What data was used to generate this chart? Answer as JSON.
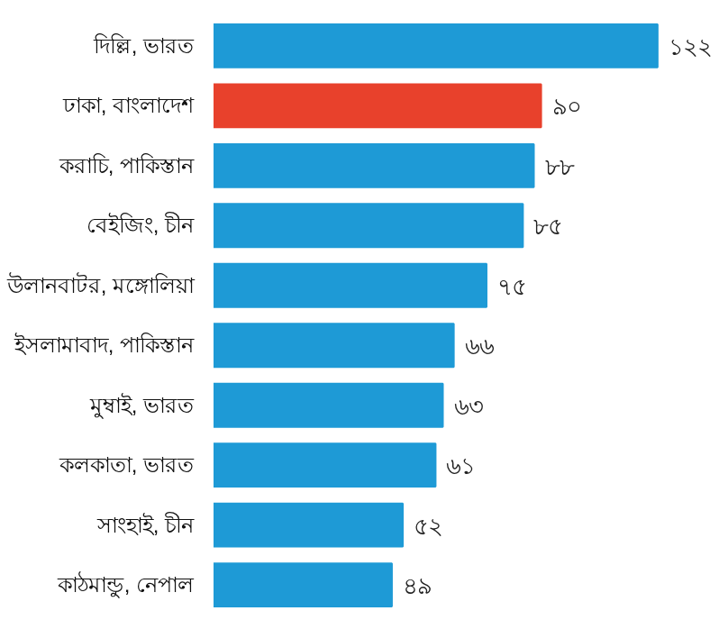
{
  "chart_data": {
    "type": "bar",
    "orientation": "horizontal",
    "categories": [
      "দিল্লি, ভারত",
      "ঢাকা, বাংলাদেশ",
      "করাচি, পাকিস্তান",
      "বেইজিং, চীন",
      "উলানবাটর, মঙ্গোলিয়া",
      "ইসলামাবাদ, পাকিস্তান",
      "মুম্বাই, ভারত",
      "কলকাতা, ভারত",
      "সাংহাই, চীন",
      "কাঠমান্ডু, নেপাল"
    ],
    "values": [
      122,
      90,
      88,
      85,
      75,
      66,
      63,
      61,
      52,
      49
    ],
    "colors": [
      "#1e9ad6",
      "#e8412c",
      "#1e9ad6",
      "#1e9ad6",
      "#1e9ad6",
      "#1e9ad6",
      "#1e9ad6",
      "#1e9ad6",
      "#1e9ad6",
      "#1e9ad6"
    ],
    "value_labels": [
      "১২২",
      "৯০",
      "৮৮",
      "৮৫",
      "৭৫",
      "৬৬",
      "৬৩",
      "৬১",
      "৫২",
      "৪৯"
    ],
    "grid": false
  }
}
